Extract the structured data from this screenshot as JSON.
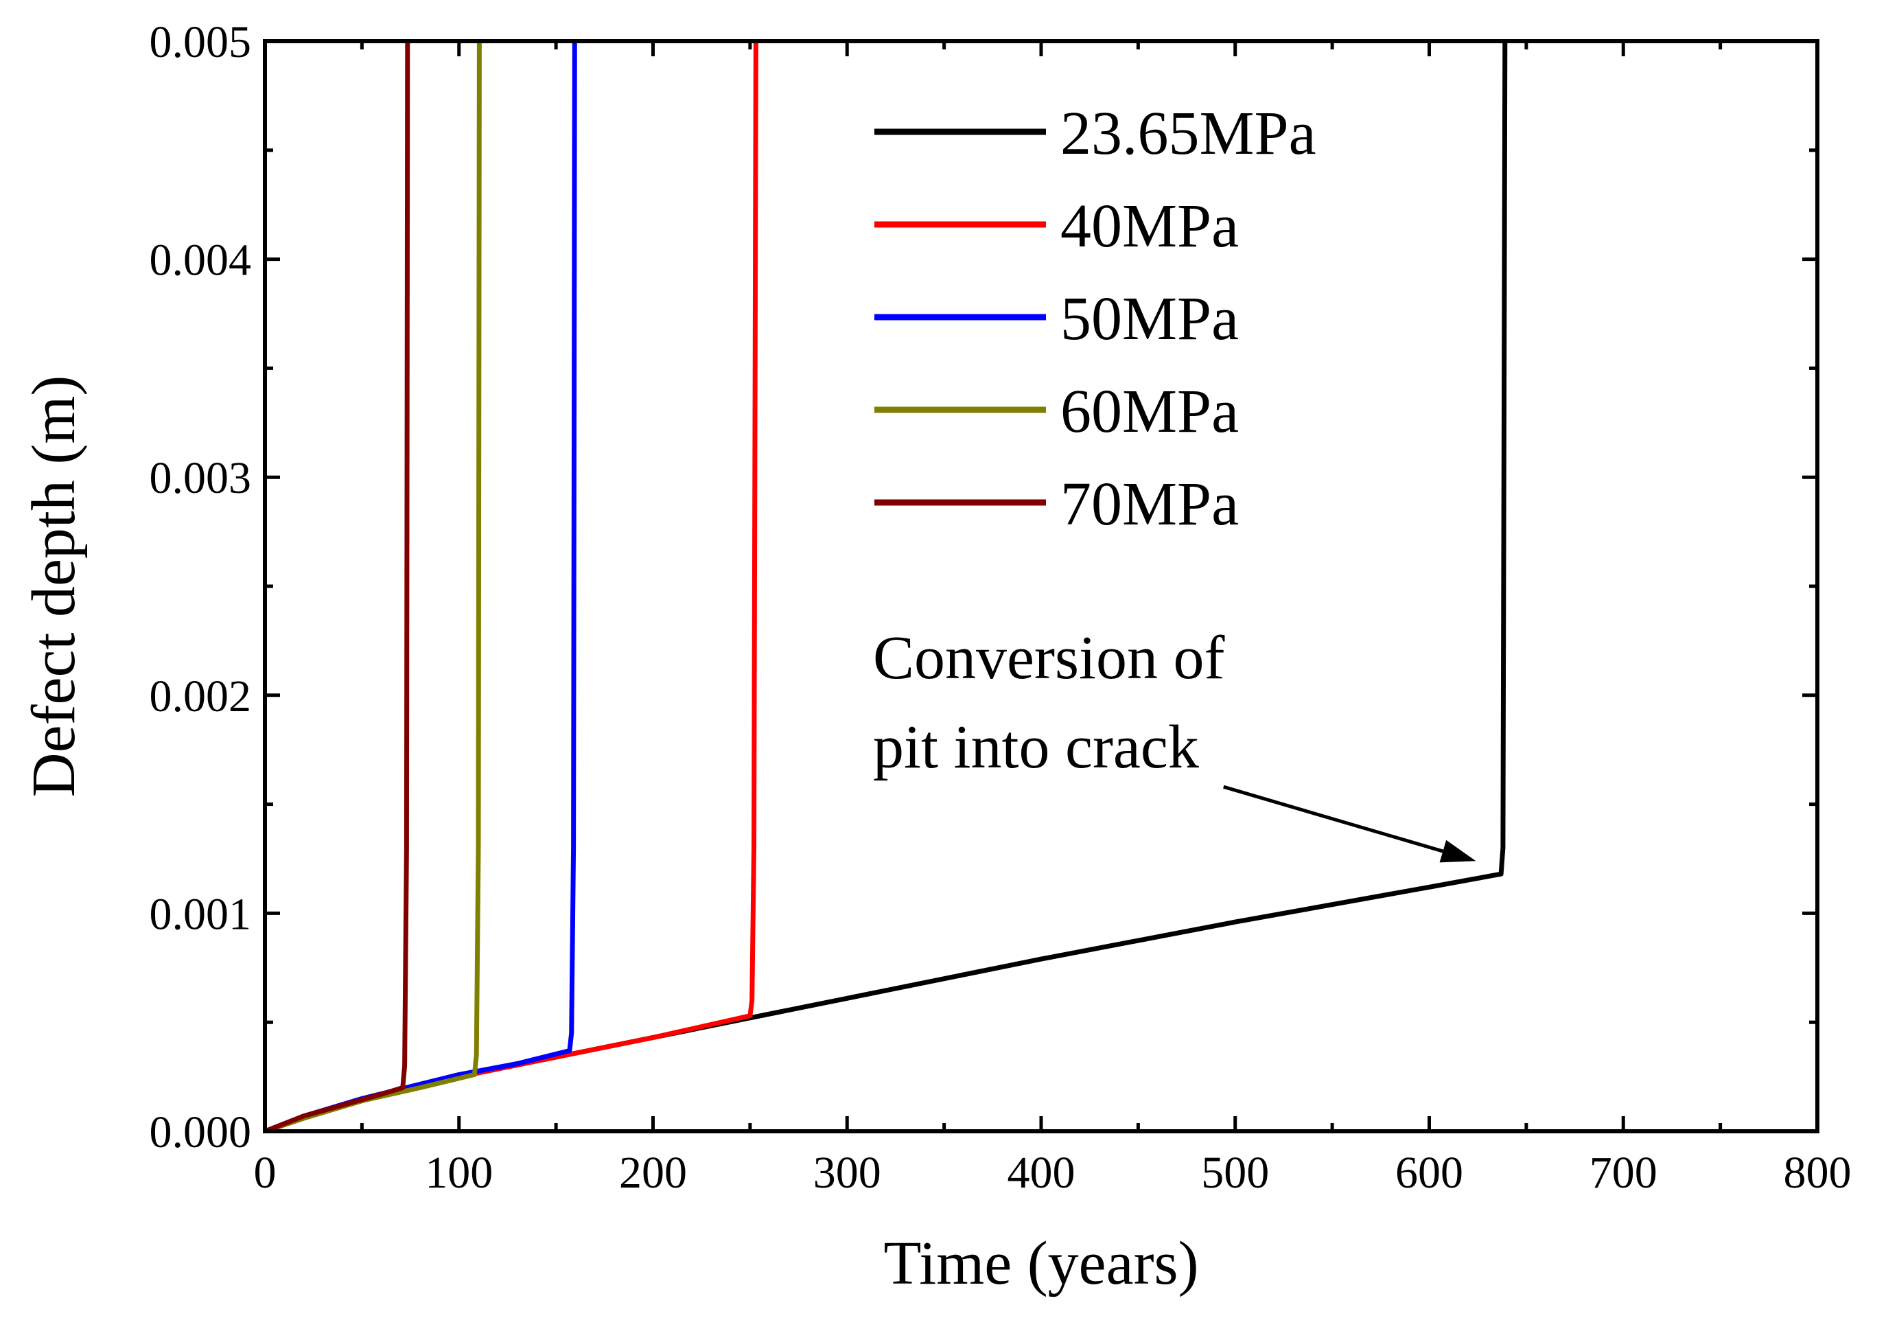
{
  "chart_data": {
    "type": "line",
    "title": "",
    "xlabel": "Time (years)",
    "ylabel": "Defect depth (m)",
    "xlim": [
      0,
      800
    ],
    "ylim": [
      0,
      0.005
    ],
    "x_ticks": [
      0,
      100,
      200,
      300,
      400,
      500,
      600,
      700,
      800
    ],
    "x_tick_labels": [
      "0",
      "100",
      "200",
      "300",
      "400",
      "500",
      "600",
      "700",
      "800"
    ],
    "y_ticks": [
      0,
      0.001,
      0.002,
      0.003,
      0.004,
      0.005
    ],
    "y_tick_labels": [
      "0.000",
      "0.001",
      "0.002",
      "0.003",
      "0.004",
      "0.005"
    ],
    "grid": false,
    "legend_position": "top-center",
    "series": [
      {
        "name": "23.65MPa",
        "color": "#000000",
        "points": [
          [
            0,
            0
          ],
          [
            20,
            6e-05
          ],
          [
            50,
            0.00014
          ],
          [
            100,
            0.00025
          ],
          [
            150,
            0.00034
          ],
          [
            200,
            0.00043
          ],
          [
            250,
            0.00052
          ],
          [
            300,
            0.00061
          ],
          [
            400,
            0.00079
          ],
          [
            500,
            0.00096
          ],
          [
            600,
            0.00112
          ],
          [
            637,
            0.00118
          ],
          [
            638,
            0.0013
          ],
          [
            639,
            0.005
          ]
        ]
      },
      {
        "name": "40MPa",
        "color": "#ff0000",
        "points": [
          [
            0,
            0
          ],
          [
            20,
            6e-05
          ],
          [
            50,
            0.00014
          ],
          [
            100,
            0.00025
          ],
          [
            150,
            0.00034
          ],
          [
            200,
            0.00043
          ],
          [
            250,
            0.00053
          ],
          [
            251,
            0.0006
          ],
          [
            252,
            0.0013
          ],
          [
            253,
            0.005
          ]
        ]
      },
      {
        "name": "50MPa",
        "color": "#0000ff",
        "points": [
          [
            0,
            0
          ],
          [
            20,
            7e-05
          ],
          [
            50,
            0.00015
          ],
          [
            100,
            0.00026
          ],
          [
            130,
            0.00031
          ],
          [
            157,
            0.00037
          ],
          [
            158,
            0.00045
          ],
          [
            159,
            0.0013
          ],
          [
            159.6,
            0.005
          ]
        ]
      },
      {
        "name": "60MPa",
        "color": "#808000",
        "points": [
          [
            0,
            0
          ],
          [
            20,
            6e-05
          ],
          [
            50,
            0.00014
          ],
          [
            80,
            0.0002
          ],
          [
            108,
            0.00026
          ],
          [
            109,
            0.00035
          ],
          [
            110,
            0.0013
          ],
          [
            110.5,
            0.005
          ]
        ]
      },
      {
        "name": "70MPa",
        "color": "#800000",
        "points": [
          [
            0,
            0
          ],
          [
            20,
            7e-05
          ],
          [
            40,
            0.00012
          ],
          [
            60,
            0.00017
          ],
          [
            71,
            0.0002
          ],
          [
            72,
            0.0003
          ],
          [
            73,
            0.0013
          ],
          [
            73.5,
            0.005
          ]
        ]
      }
    ],
    "annotation": {
      "lines": [
        "Conversion of",
        "pit into crack"
      ],
      "arrow_tip": [
        624,
        0.00124
      ],
      "arrow_tail": [
        494,
        0.00158
      ]
    }
  }
}
